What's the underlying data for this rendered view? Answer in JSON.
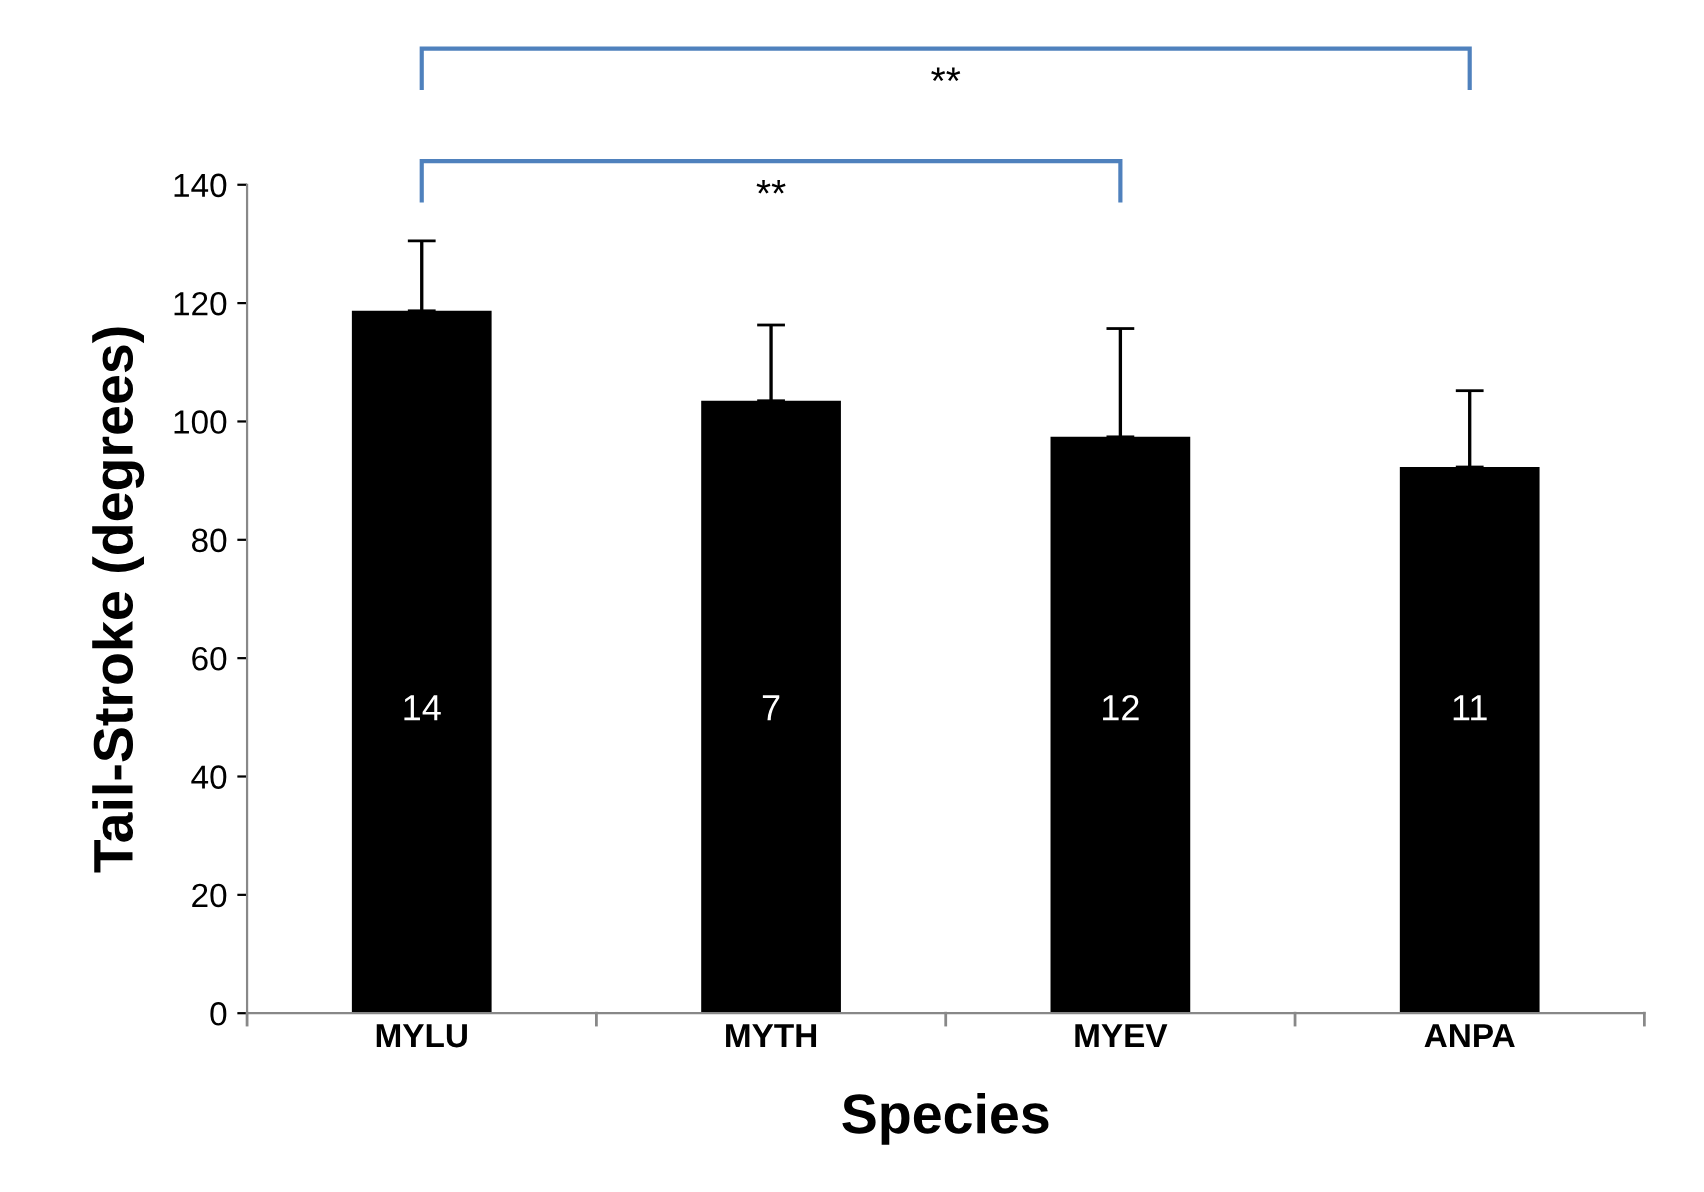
{
  "chart_data": {
    "type": "bar",
    "xlabel": "Species",
    "ylabel": "Tail-Stroke (degrees)",
    "categories": [
      "MYLU",
      "MYTH",
      "MYEV",
      "ANPA"
    ],
    "values": [
      118.7,
      103.5,
      97.4,
      92.3
    ],
    "errors": [
      [
        118.7,
        130.5
      ],
      [
        103.5,
        116.3
      ],
      [
        97.4,
        115.7
      ],
      [
        92.3,
        105.2
      ]
    ],
    "color": "#000000",
    "ylim": [
      0,
      140
    ],
    "yticks": [
      0,
      20,
      40,
      60,
      80,
      100,
      120,
      140
    ],
    "grid": false,
    "annotations": [
      "14",
      "7",
      "12",
      "11",
      "**",
      "**"
    ]
  }
}
